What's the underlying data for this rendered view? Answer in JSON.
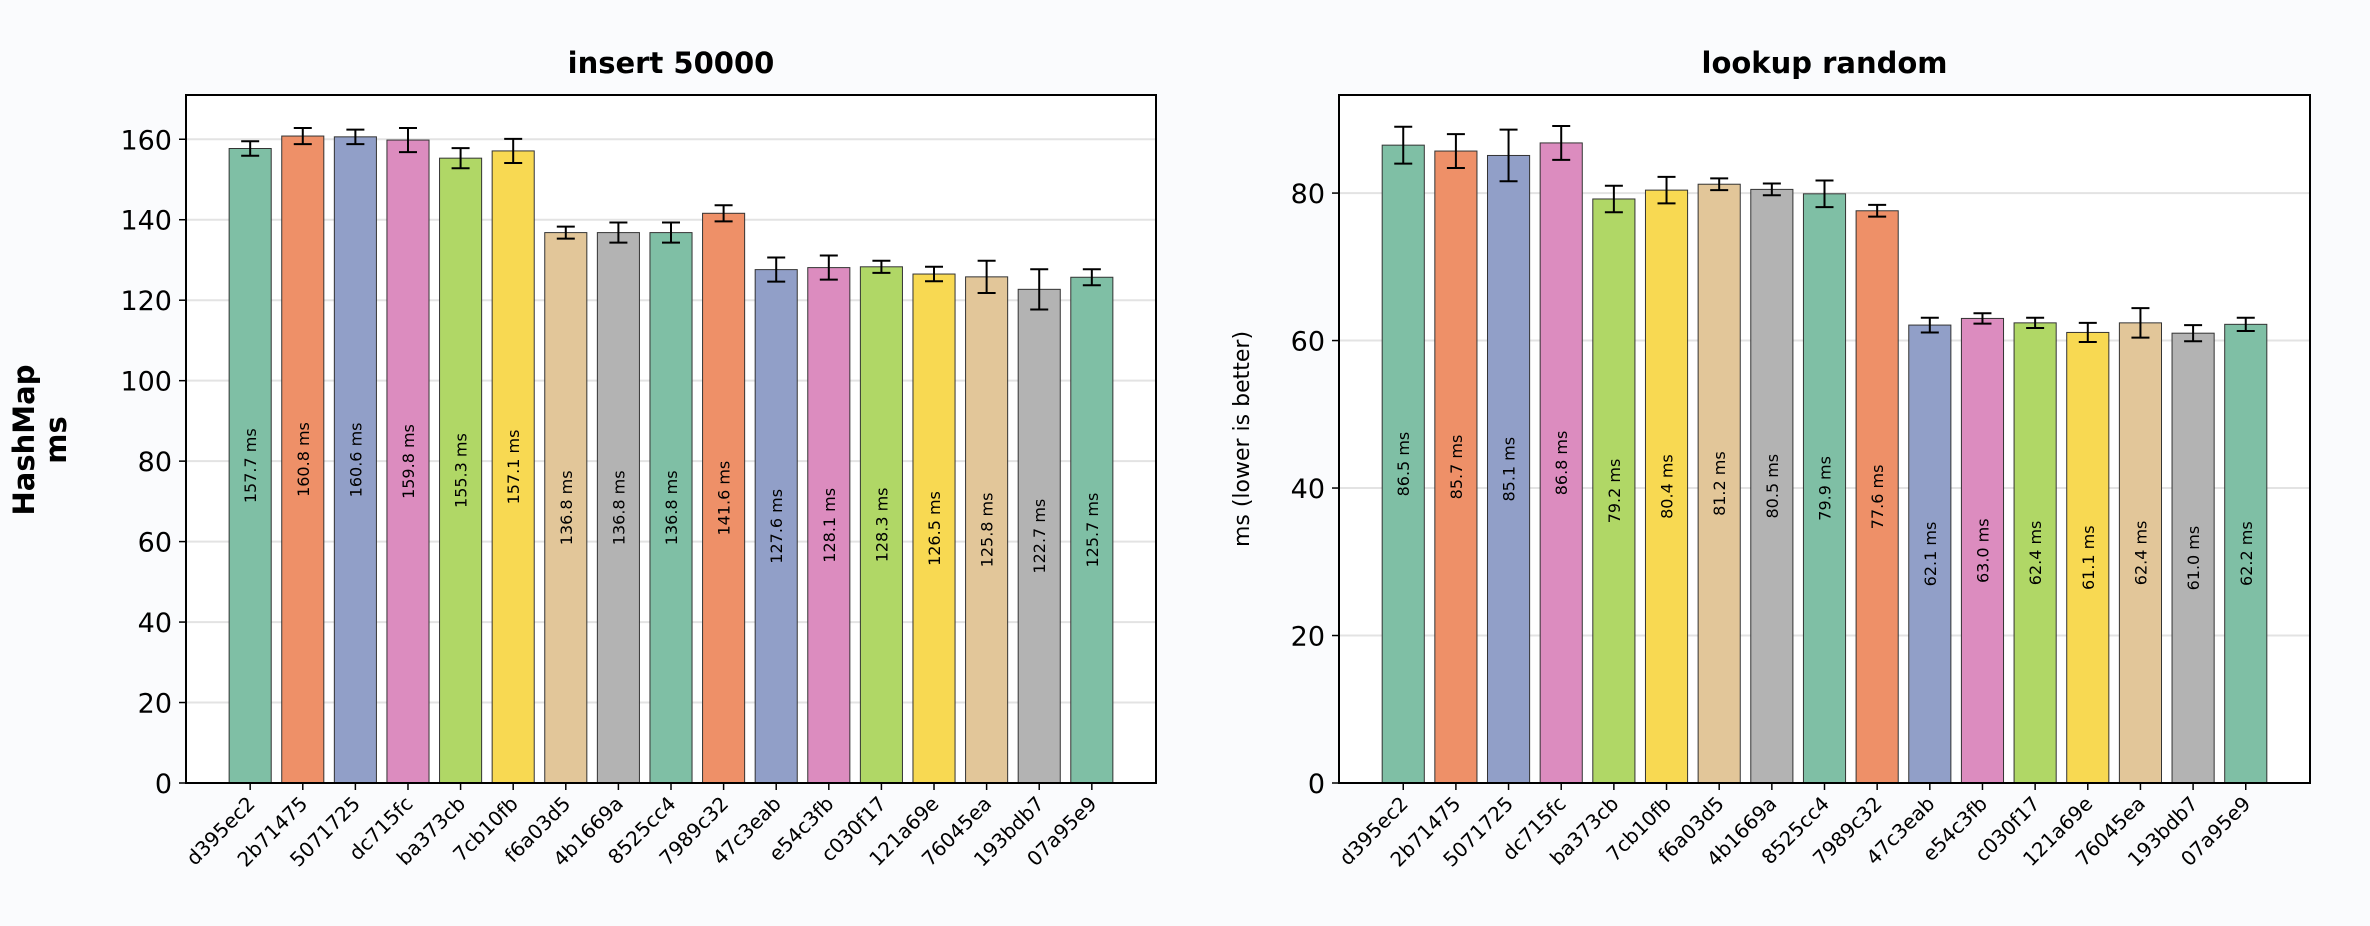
{
  "row_label": [
    "HashMap",
    "ms"
  ],
  "palette": [
    "#7fbfa5",
    "#ee9068",
    "#919fc8",
    "#dc8cbf",
    "#b0d766",
    "#f8d952",
    "#e2c699",
    "#b3b3b3"
  ],
  "chart_data": [
    {
      "type": "bar",
      "title": "insert 50000",
      "xlabel": "",
      "ylabel": "",
      "ylim": [
        0,
        171
      ],
      "yticks": [
        0,
        20,
        40,
        60,
        80,
        100,
        120,
        140,
        160
      ],
      "grid": true,
      "categories": [
        "d395ec2",
        "2b71475",
        "5071725",
        "dc715fc",
        "ba373cb",
        "7cb10fb",
        "f6a03d5",
        "4b1669a",
        "8525cc4",
        "7989c32",
        "47c3eab",
        "e54c3fb",
        "c030f17",
        "121a69e",
        "76045ea",
        "193bdb7",
        "07a95e9"
      ],
      "values": [
        157.7,
        160.8,
        160.6,
        159.8,
        155.3,
        157.1,
        136.8,
        136.8,
        136.8,
        141.6,
        127.6,
        128.1,
        128.3,
        126.5,
        125.8,
        122.7,
        125.7
      ],
      "errors": [
        1.8,
        2.0,
        1.8,
        3.0,
        2.5,
        3.0,
        1.5,
        2.5,
        2.5,
        2.0,
        3.0,
        3.0,
        1.5,
        1.8,
        4.0,
        5.0,
        2.0
      ],
      "data_labels": [
        "157.7 ms",
        "160.8 ms",
        "160.6 ms",
        "159.8 ms",
        "155.3 ms",
        "157.1 ms",
        "136.8 ms",
        "136.8 ms",
        "136.8 ms",
        "141.6 ms",
        "127.6 ms",
        "128.1 ms",
        "128.3 ms",
        "126.5 ms",
        "125.8 ms",
        "122.7 ms",
        "125.7 ms"
      ]
    },
    {
      "type": "bar",
      "title": "lookup random",
      "xlabel": "",
      "ylabel": "ms (lower is better)",
      "ylim": [
        0,
        93.3
      ],
      "yticks": [
        0,
        20,
        40,
        60,
        80
      ],
      "grid": true,
      "categories": [
        "d395ec2",
        "2b71475",
        "5071725",
        "dc715fc",
        "ba373cb",
        "7cb10fb",
        "f6a03d5",
        "4b1669a",
        "8525cc4",
        "7989c32",
        "47c3eab",
        "e54c3fb",
        "c030f17",
        "121a69e",
        "76045ea",
        "193bdb7",
        "07a95e9"
      ],
      "values": [
        86.5,
        85.7,
        85.1,
        86.8,
        79.2,
        80.4,
        81.2,
        80.5,
        79.9,
        77.6,
        62.1,
        63.0,
        62.4,
        61.1,
        62.4,
        61.0,
        62.2
      ],
      "errors": [
        2.5,
        2.3,
        3.5,
        2.3,
        1.8,
        1.8,
        0.8,
        0.8,
        1.8,
        0.8,
        1.0,
        0.7,
        0.7,
        1.3,
        2.0,
        1.1,
        0.9
      ],
      "data_labels": [
        "86.5 ms",
        "85.7 ms",
        "85.1 ms",
        "86.8 ms",
        "79.2 ms",
        "80.4 ms",
        "81.2 ms",
        "80.5 ms",
        "79.9 ms",
        "77.6 ms",
        "62.1 ms",
        "63.0 ms",
        "62.4 ms",
        "61.1 ms",
        "62.4 ms",
        "61.0 ms",
        "62.2 ms"
      ]
    }
  ]
}
